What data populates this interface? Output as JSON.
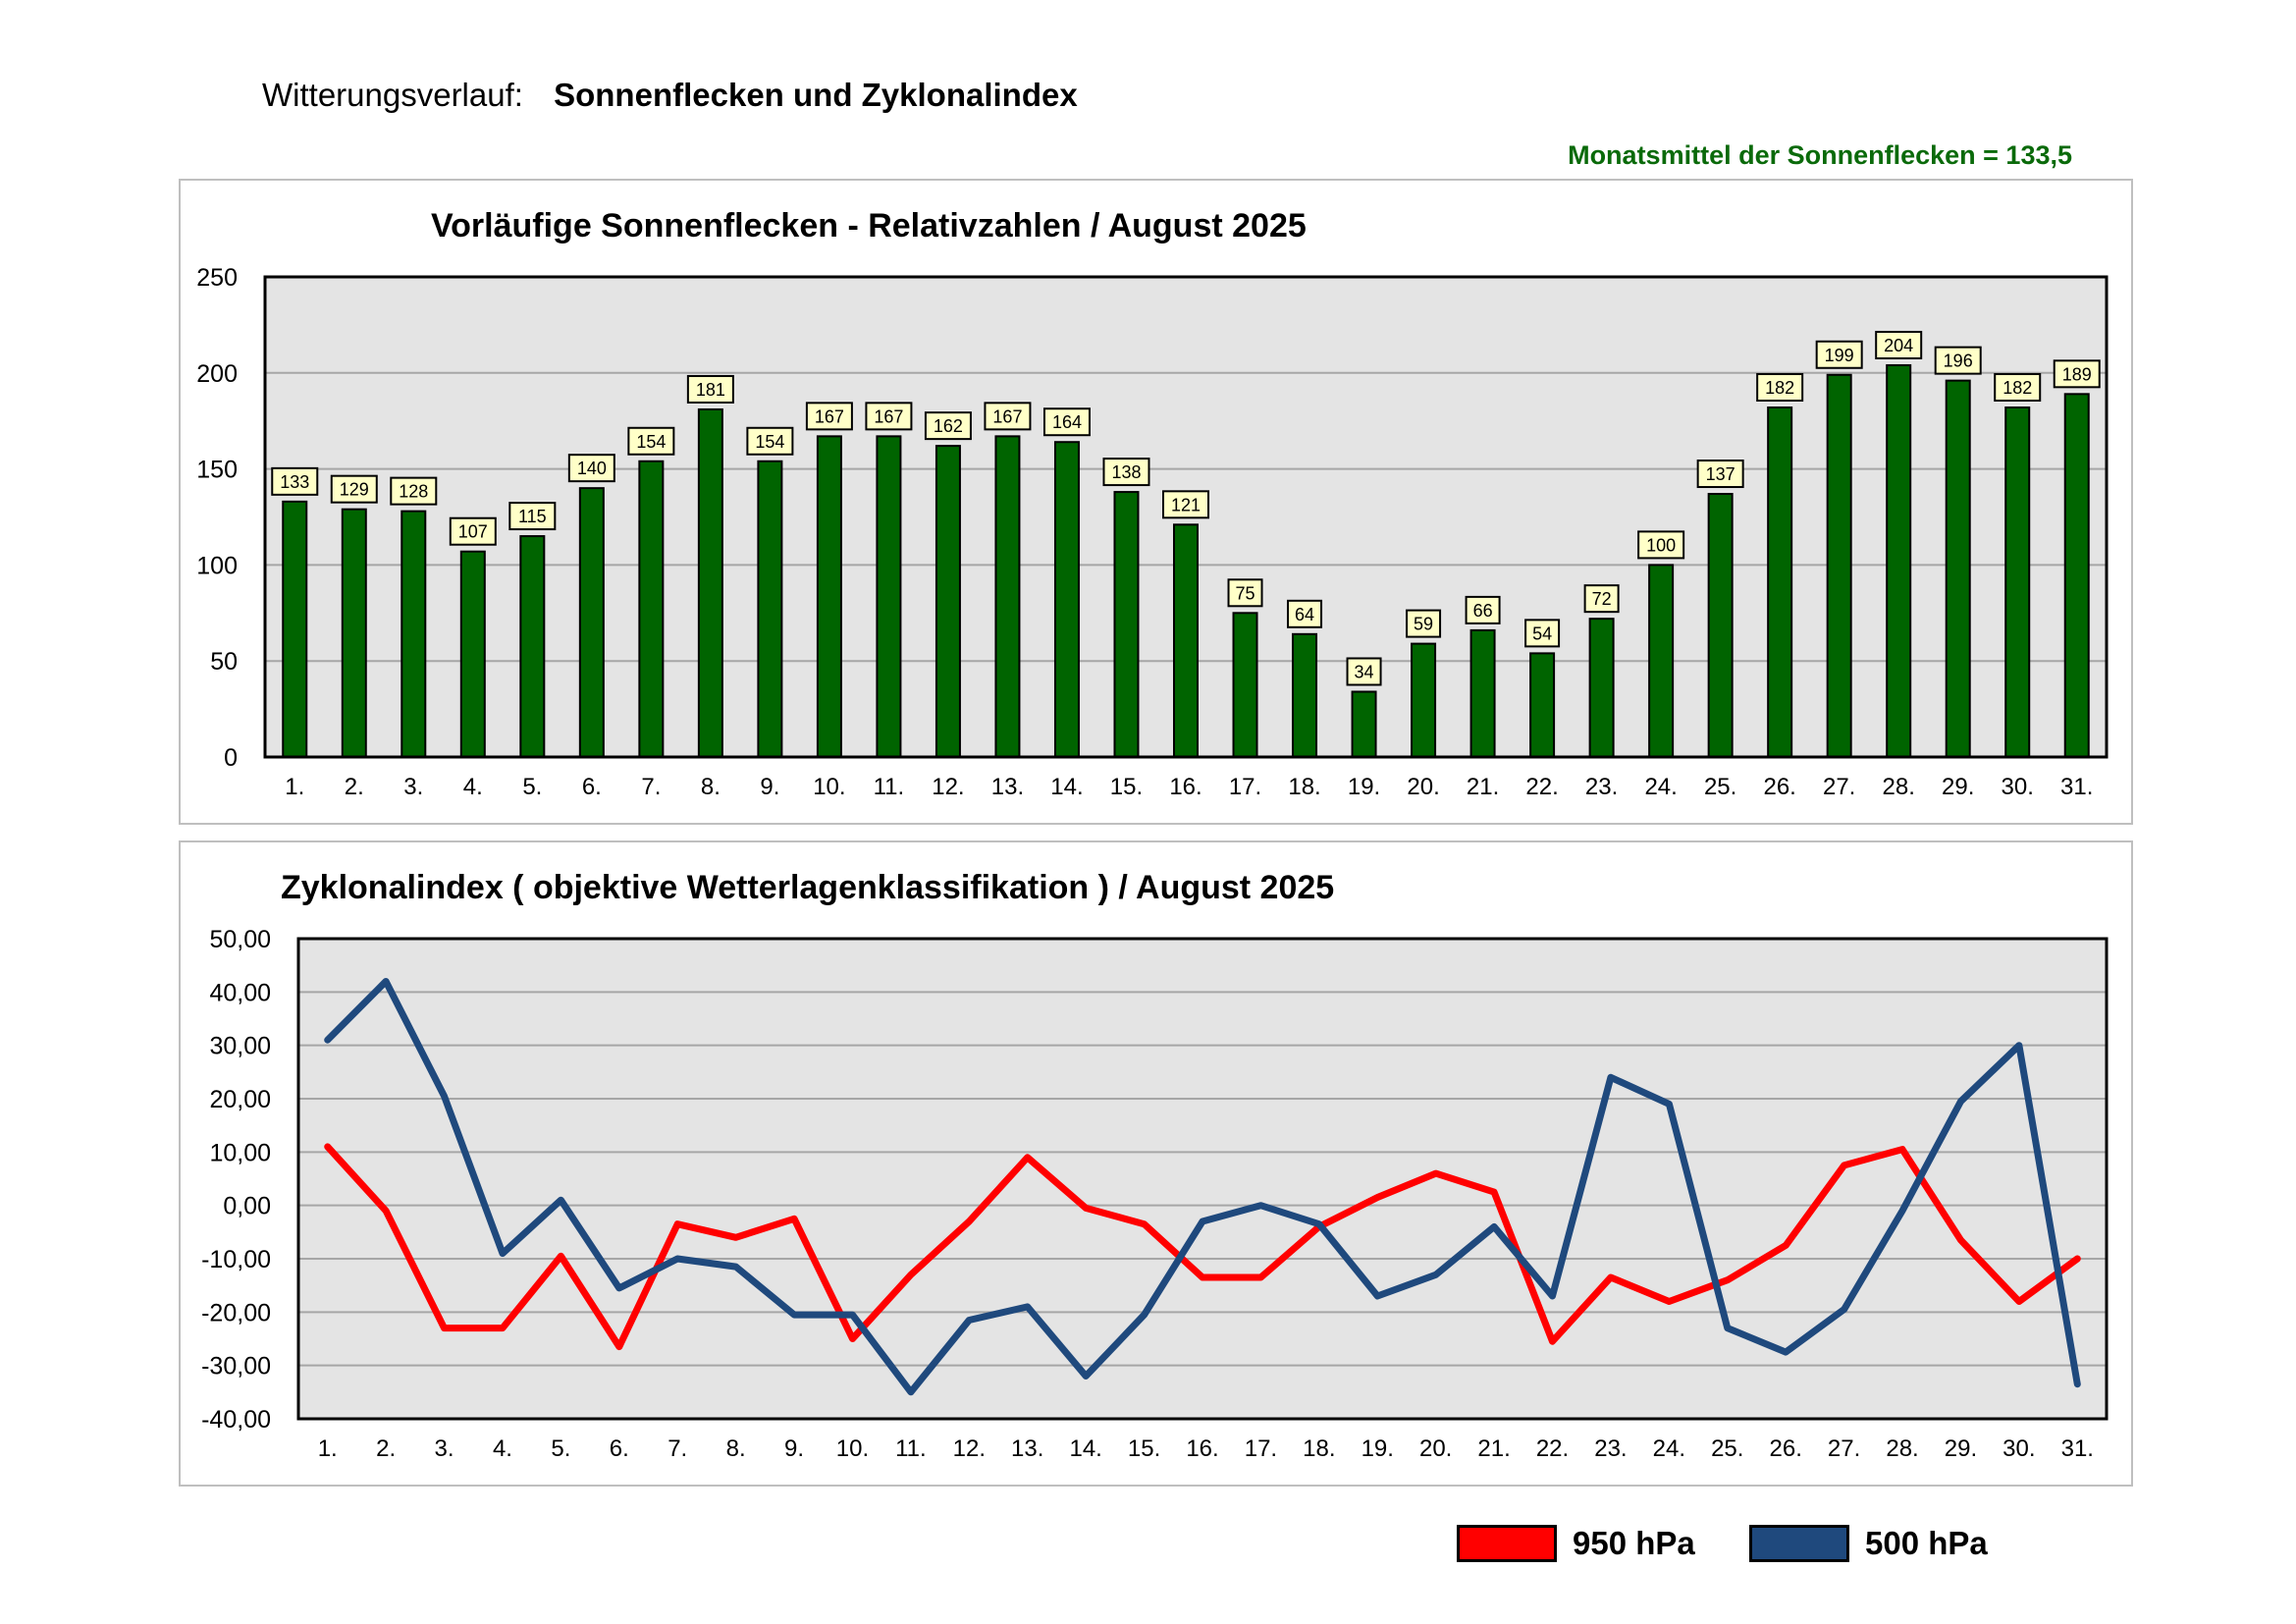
{
  "header": {
    "prefix": "Witterungsverlauf:",
    "title": "Sonnenflecken und Zyklonalindex"
  },
  "monthly_mean": "Monatsmittel der Sonnenflecken = 133,5",
  "legend": [
    {
      "label": "950 hPa",
      "color": "#ff0000"
    },
    {
      "label": "500 hPa",
      "color": "#1f497d"
    }
  ],
  "chart_data": [
    {
      "type": "bar",
      "title": "Vorläufige Sonnenflecken - Relativzahlen  /   August 2025",
      "categories": [
        "1.",
        "2.",
        "3.",
        "4.",
        "5.",
        "6.",
        "7.",
        "8.",
        "9.",
        "10.",
        "11.",
        "12.",
        "13.",
        "14.",
        "15.",
        "16.",
        "17.",
        "18.",
        "19.",
        "20.",
        "21.",
        "22.",
        "23.",
        "24.",
        "25.",
        "26.",
        "27.",
        "28.",
        "29.",
        "30.",
        "31."
      ],
      "values": [
        133,
        129,
        128,
        107,
        115,
        140,
        154,
        181,
        154,
        167,
        167,
        162,
        167,
        164,
        138,
        121,
        75,
        64,
        34,
        59,
        66,
        54,
        72,
        100,
        137,
        182,
        199,
        204,
        196,
        182,
        189
      ],
      "ylim": [
        0,
        250
      ],
      "yticks": [
        "0",
        "50",
        "100",
        "150",
        "200",
        "250"
      ],
      "bar_color": "#006400",
      "grid": true
    },
    {
      "type": "line",
      "title": "Zyklonalindex  ( objektive Wetterlagenklassifikation )  /  August 2025",
      "categories": [
        "1.",
        "2.",
        "3.",
        "4.",
        "5.",
        "6.",
        "7.",
        "8.",
        "9.",
        "10.",
        "11.",
        "12.",
        "13.",
        "14.",
        "15.",
        "16.",
        "17.",
        "18.",
        "19.",
        "20.",
        "21.",
        "22.",
        "23.",
        "24.",
        "25.",
        "26.",
        "27.",
        "28.",
        "29.",
        "30.",
        "31."
      ],
      "series": [
        {
          "name": "950 hPa",
          "color": "#ff0000",
          "values": [
            11,
            -1,
            -23,
            -23,
            -9.5,
            -26.5,
            -3.5,
            -6,
            -2.5,
            -25,
            -13,
            -3,
            9,
            -0.5,
            -3.5,
            -13.5,
            -13.5,
            -4,
            1.5,
            6,
            2.5,
            -25.5,
            -13.5,
            -18,
            -14,
            -7.5,
            7.5,
            10.5,
            -6.5,
            -18,
            -10
          ]
        },
        {
          "name": "500 hPa",
          "color": "#1f497d",
          "values": [
            31,
            42,
            20.5,
            -9,
            1,
            -15.5,
            -10,
            -11.5,
            -20.5,
            -20.5,
            -35,
            -21.5,
            -19,
            -32,
            -20.5,
            -3,
            0,
            -3.5,
            -17,
            -13,
            -4,
            -17,
            24,
            19,
            -23,
            -27.5,
            -19.5,
            -1,
            19.5,
            30,
            -33.5
          ]
        }
      ],
      "ylim": [
        -40,
        50
      ],
      "yticks": [
        "-40,00",
        "-30,00",
        "-20,00",
        "-10,00",
        "0,00",
        "10,00",
        "20,00",
        "30,00",
        "40,00",
        "50,00"
      ],
      "grid": true
    }
  ]
}
